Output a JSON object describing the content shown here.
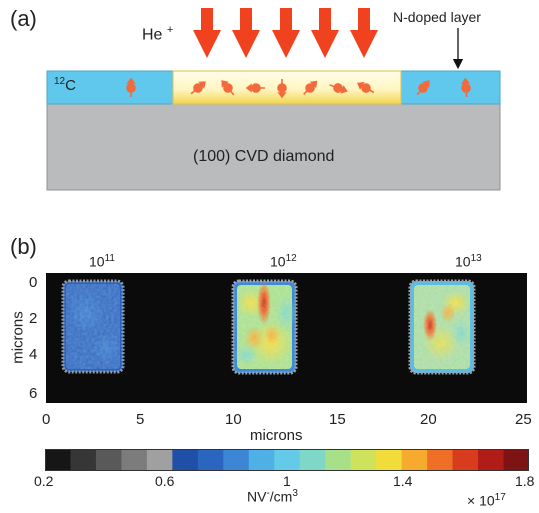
{
  "panel_a": {
    "label": "(a)",
    "ion_label": "He",
    "ion_charge": "+",
    "layer_label": "N-doped layer",
    "isotope_mass": "12",
    "isotope_symbol": "C",
    "substrate_label": "(100) CVD diamond",
    "colors": {
      "layer": "#5fc8ec",
      "substrate": "#b9bbbd",
      "implant_center": "#fffbe0",
      "implant_edge": "#f6dd6a",
      "arrow": "#f0421f",
      "spin": "#f26a3c"
    }
  },
  "panel_b": {
    "label": "(b)",
    "dose_labels": [
      {
        "base": "10",
        "exp": "11"
      },
      {
        "base": "10",
        "exp": "12"
      },
      {
        "base": "10",
        "exp": "13"
      }
    ],
    "ylabel": "microns",
    "xlabel": "microns",
    "yticks": [
      "0",
      "2",
      "4",
      "6"
    ],
    "xticks": [
      "0",
      "5",
      "10",
      "15",
      "20",
      "25"
    ]
  },
  "colorbar": {
    "ticks": [
      "0.2",
      "0.6",
      "1",
      "1.4",
      "1.8"
    ],
    "unit_pre": "NV",
    "unit_sup": "-",
    "unit_post": "/cm",
    "unit_post_sup": "3",
    "multiplier_pre": "× 10",
    "multiplier_exp": "17",
    "colors": [
      "#161616",
      "#363636",
      "#595959",
      "#7c7c7c",
      "#a0a0a0",
      "#1f4fa6",
      "#2a66c0",
      "#3d86d6",
      "#4fb0e6",
      "#63cbe7",
      "#7ed7c7",
      "#a8e08a",
      "#cfe25c",
      "#f2dc3a",
      "#f7ab2e",
      "#ee6f25",
      "#d93b1d",
      "#b01d19",
      "#7d1413"
    ]
  },
  "chart_data": {
    "type": "heatmap",
    "xlabel": "microns",
    "ylabel": "microns",
    "xlim": [
      0,
      25
    ],
    "ylim": [
      6.5,
      -0.5
    ],
    "colorbar_range": [
      0.2,
      1.8
    ],
    "colorbar_unit": "NV-/cm3 × 10^17",
    "regions": [
      {
        "dose_label": "10^11",
        "x_range": [
          1.3,
          6.1
        ],
        "y_range": [
          0.2,
          5.4
        ],
        "mean_value": 0.58,
        "peak_value": 0.65
      },
      {
        "dose_label": "10^12",
        "x_range": [
          10.0,
          14.8
        ],
        "y_range": [
          0.2,
          5.4
        ],
        "mean_value": 1.15,
        "peak_value": 1.7
      },
      {
        "dose_label": "10^13",
        "x_range": [
          18.9,
          23.8
        ],
        "y_range": [
          0.2,
          5.4
        ],
        "mean_value": 1.0,
        "peak_value": 1.5
      }
    ]
  }
}
